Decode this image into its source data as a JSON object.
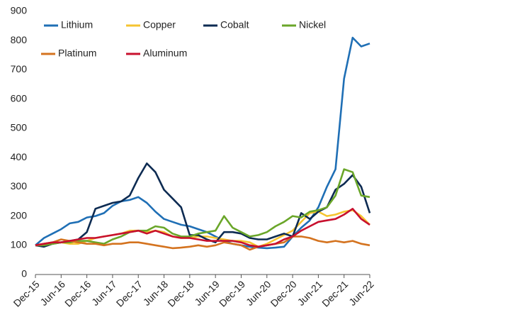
{
  "chart_data": {
    "type": "line",
    "categories": [
      "Dec-15",
      null,
      null,
      "Jun-16",
      null,
      null,
      "Dec-16",
      null,
      null,
      "Jun-17",
      null,
      null,
      "Dec-17",
      null,
      null,
      "Jun-18",
      null,
      null,
      "Dec-18",
      null,
      null,
      "Jun-19",
      null,
      null,
      "Dec-19",
      null,
      null,
      "Jun-20",
      null,
      null,
      "Dec-20",
      null,
      null,
      "Jun-21",
      null,
      null,
      "Dec-21",
      null,
      null,
      "Jun-22"
    ],
    "series": [
      {
        "name": "Lithium",
        "color": "#1f6fb5",
        "values": [
          100,
          125,
          140,
          155,
          175,
          180,
          195,
          200,
          210,
          235,
          250,
          255,
          265,
          245,
          215,
          190,
          180,
          170,
          165,
          155,
          145,
          130,
          115,
          105,
          100,
          95,
          92,
          90,
          92,
          95,
          130,
          160,
          185,
          230,
          300,
          360,
          670,
          810,
          780,
          790
        ]
      },
      {
        "name": "Copper",
        "color": "#f5c431",
        "values": [
          100,
          100,
          105,
          110,
          105,
          105,
          115,
          125,
          130,
          135,
          140,
          150,
          150,
          145,
          150,
          145,
          130,
          125,
          125,
          130,
          130,
          125,
          120,
          115,
          115,
          110,
          95,
          105,
          120,
          135,
          150,
          180,
          210,
          215,
          200,
          205,
          215,
          220,
          200,
          170
        ]
      },
      {
        "name": "Cobalt",
        "color": "#0d2b52",
        "values": [
          100,
          95,
          105,
          110,
          115,
          120,
          145,
          225,
          235,
          245,
          250,
          270,
          330,
          380,
          350,
          290,
          260,
          230,
          135,
          135,
          120,
          110,
          145,
          145,
          140,
          125,
          120,
          120,
          130,
          140,
          130,
          210,
          190,
          215,
          230,
          290,
          310,
          340,
          300,
          210
        ]
      },
      {
        "name": "Nickel",
        "color": "#6aa629",
        "values": [
          100,
          100,
          105,
          110,
          110,
          115,
          115,
          110,
          105,
          120,
          130,
          145,
          150,
          150,
          165,
          160,
          140,
          130,
          130,
          140,
          145,
          150,
          200,
          160,
          145,
          130,
          135,
          145,
          165,
          180,
          200,
          195,
          215,
          220,
          230,
          270,
          360,
          350,
          270,
          265
        ]
      },
      {
        "name": "Platinum",
        "color": "#d4731f",
        "values": [
          100,
          105,
          110,
          120,
          115,
          110,
          105,
          105,
          100,
          105,
          105,
          110,
          110,
          105,
          100,
          95,
          90,
          92,
          95,
          100,
          95,
          100,
          110,
          105,
          100,
          85,
          95,
          100,
          105,
          110,
          130,
          130,
          125,
          115,
          110,
          115,
          110,
          115,
          105,
          100
        ]
      },
      {
        "name": "Aluminum",
        "color": "#c8102e",
        "values": [
          100,
          105,
          110,
          110,
          115,
          120,
          125,
          125,
          130,
          135,
          140,
          145,
          150,
          140,
          150,
          140,
          130,
          125,
          125,
          120,
          115,
          115,
          115,
          115,
          110,
          100,
          95,
          100,
          105,
          120,
          130,
          150,
          165,
          180,
          185,
          190,
          205,
          225,
          190,
          170
        ]
      }
    ],
    "ylim": [
      0,
      900
    ],
    "yticks": [
      0,
      100,
      200,
      300,
      400,
      500,
      600,
      700,
      800,
      900
    ],
    "grid": false
  }
}
